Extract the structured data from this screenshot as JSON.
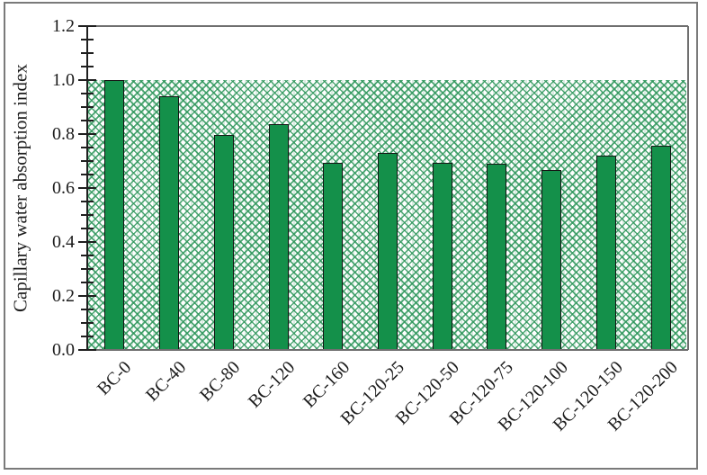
{
  "figure": {
    "background_color": "#ffffff",
    "frame_color": "#7a7a7a"
  },
  "chart_data": {
    "type": "bar",
    "title": "",
    "xlabel": "",
    "ylabel": "Capillary water absorption index",
    "categories": [
      "BC-0",
      "BC-40",
      "BC-80",
      "BC-120",
      "BC-160",
      "BC-120-25",
      "BC-120-50",
      "BC-120-75",
      "BC-120-100",
      "BC-120-150",
      "BC-120-200"
    ],
    "values": [
      1.0,
      0.94,
      0.795,
      0.835,
      0.695,
      0.73,
      0.695,
      0.69,
      0.665,
      0.72,
      0.755
    ],
    "ylim": [
      0,
      1.2
    ],
    "y_major_step": 0.2,
    "y_minor_step": 0.05,
    "y_tick_labels": [
      "0.0",
      "0.2",
      "0.4",
      "0.6",
      "0.8",
      "1.0",
      "1.2"
    ],
    "grid": "off",
    "legend": "none",
    "reference_band": {
      "from": 0,
      "to": 1.0,
      "pattern": "dotted-diamond-hatch",
      "pattern_color": "#2e965b",
      "background": "#ffffff"
    },
    "bar_fill_color": "#14904a",
    "bar_border_color": "#151515",
    "axis_color": "#1f1f1f",
    "plot_border_color": "#6f6f6f",
    "x_tick_label_rotation_deg": 45
  }
}
